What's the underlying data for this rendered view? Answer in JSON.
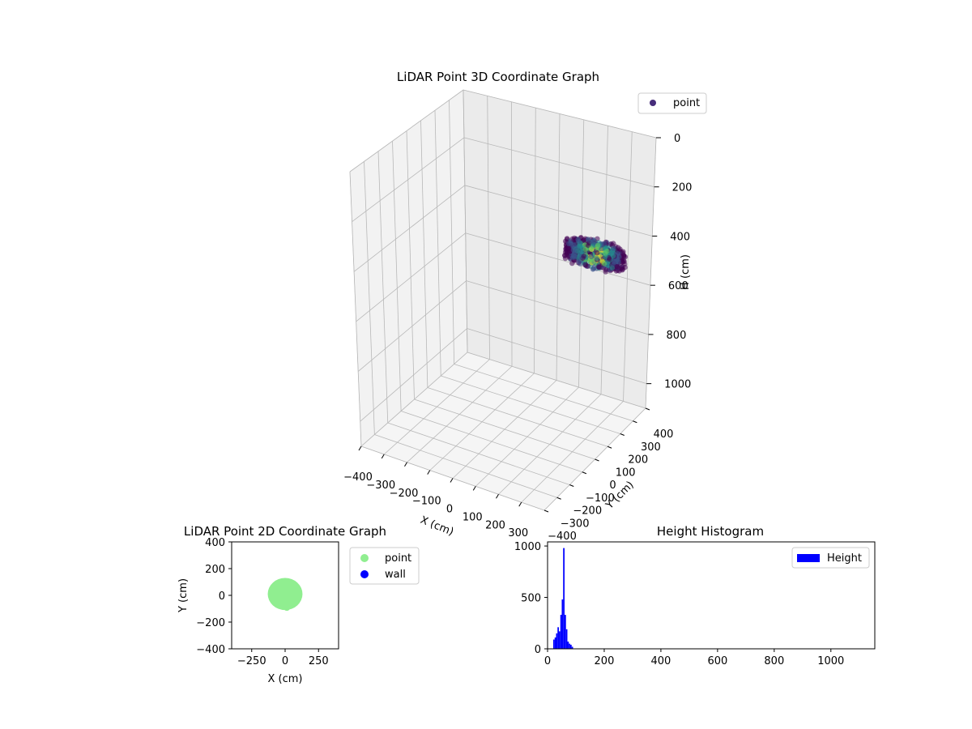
{
  "colors": {
    "point3d": "#472d7b",
    "point2d": "#90ee90",
    "wall": "#0000ff",
    "hist": "#0000ff",
    "viridis": [
      "#440154",
      "#3b528b",
      "#21918c",
      "#5ec962",
      "#fde725"
    ]
  },
  "chart_data": [
    {
      "type": "scatter",
      "projection": "3d",
      "title": "LiDAR Point 3D Coordinate Graph",
      "xlabel": "X (cm)",
      "ylabel": "Y (cm)",
      "zlabel": "H (cm)",
      "xlim": [
        -400,
        400
      ],
      "ylim": [
        -400,
        400
      ],
      "zlim": [
        1100,
        0
      ],
      "z_inverted": true,
      "xticks": [
        "−400",
        "−300",
        "−200",
        "−100",
        "0",
        "100",
        "200",
        "300"
      ],
      "yticks": [
        "−400",
        "−300",
        "−200",
        "−100",
        "0",
        "100",
        "200",
        "300",
        "400"
      ],
      "zticks": [
        "0",
        "200",
        "400",
        "600",
        "800",
        "1000"
      ],
      "legend": [
        "point"
      ],
      "legend_loc": "upper right",
      "grid": true,
      "colormap": "viridis",
      "series": [
        {
          "name": "point",
          "cloud": {
            "x_range": [
              -120,
              130
            ],
            "y_range": [
              -130,
              130
            ],
            "h_range": [
              40,
              110
            ]
          }
        }
      ]
    },
    {
      "type": "scatter",
      "title": "LiDAR Point 2D Coordinate Graph",
      "xlabel": "X (cm)",
      "ylabel": "Y (cm)",
      "xlim": [
        -400,
        400
      ],
      "ylim": [
        -400,
        400
      ],
      "xticks": [
        "−250",
        "0",
        "250"
      ],
      "yticks": [
        "400",
        "200",
        "0",
        "−200",
        "−400"
      ],
      "legend": [
        "point",
        "wall"
      ],
      "legend_loc": "outside right",
      "series": [
        {
          "name": "point",
          "region": {
            "x_range": [
              -130,
              130
            ],
            "y_range": [
              -110,
              130
            ]
          }
        },
        {
          "name": "wall",
          "points": []
        }
      ]
    },
    {
      "type": "bar",
      "subtype": "histogram",
      "title": "Height Histogram",
      "xlabel": "",
      "ylabel": "",
      "xlim": [
        0,
        1155
      ],
      "ylim": [
        0,
        1040
      ],
      "xticks": [
        "0",
        "200",
        "400",
        "600",
        "800",
        "1000"
      ],
      "yticks": [
        "0",
        "500",
        "1000"
      ],
      "legend": [
        "Height"
      ],
      "legend_loc": "upper right",
      "bin_width": 5,
      "series": [
        {
          "name": "Height",
          "bins": [
            {
              "x": 20,
              "count": 90
            },
            {
              "x": 25,
              "count": 110
            },
            {
              "x": 30,
              "count": 150
            },
            {
              "x": 35,
              "count": 210
            },
            {
              "x": 40,
              "count": 170
            },
            {
              "x": 45,
              "count": 330
            },
            {
              "x": 50,
              "count": 480
            },
            {
              "x": 55,
              "count": 980
            },
            {
              "x": 60,
              "count": 330
            },
            {
              "x": 65,
              "count": 190
            },
            {
              "x": 70,
              "count": 70
            },
            {
              "x": 75,
              "count": 50
            },
            {
              "x": 80,
              "count": 40
            },
            {
              "x": 85,
              "count": 20
            }
          ]
        }
      ]
    }
  ]
}
